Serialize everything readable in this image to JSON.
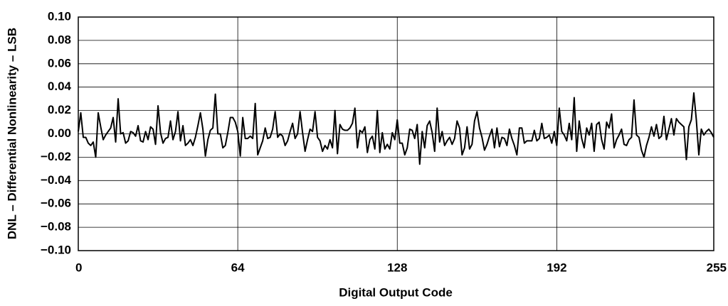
{
  "chart_data": {
    "type": "line",
    "xlabel": "Digital Output Code",
    "ylabel": "DNL – Differential Nonlinearity – LSB",
    "x": [
      0,
      1,
      2,
      3,
      4,
      5,
      6,
      7,
      8,
      9,
      10,
      11,
      12,
      13,
      14,
      15,
      16,
      17,
      18,
      19,
      20,
      21,
      22,
      23,
      24,
      25,
      26,
      27,
      28,
      29,
      30,
      31,
      32,
      33,
      34,
      35,
      36,
      37,
      38,
      39,
      40,
      41,
      42,
      43,
      44,
      45,
      46,
      47,
      48,
      49,
      50,
      51,
      52,
      53,
      54,
      55,
      56,
      57,
      58,
      59,
      60,
      61,
      62,
      63,
      64,
      65,
      66,
      67,
      68,
      69,
      70,
      71,
      72,
      73,
      74,
      75,
      76,
      77,
      78,
      79,
      80,
      81,
      82,
      83,
      84,
      85,
      86,
      87,
      88,
      89,
      90,
      91,
      92,
      93,
      94,
      95,
      96,
      97,
      98,
      99,
      100,
      101,
      102,
      103,
      104,
      105,
      106,
      107,
      108,
      109,
      110,
      111,
      112,
      113,
      114,
      115,
      116,
      117,
      118,
      119,
      120,
      121,
      122,
      123,
      124,
      125,
      126,
      127,
      128,
      129,
      130,
      131,
      132,
      133,
      134,
      135,
      136,
      137,
      138,
      139,
      140,
      141,
      142,
      143,
      144,
      145,
      146,
      147,
      148,
      149,
      150,
      151,
      152,
      153,
      154,
      155,
      156,
      157,
      158,
      159,
      160,
      161,
      162,
      163,
      164,
      165,
      166,
      167,
      168,
      169,
      170,
      171,
      172,
      173,
      174,
      175,
      176,
      177,
      178,
      179,
      180,
      181,
      182,
      183,
      184,
      185,
      186,
      187,
      188,
      189,
      190,
      191,
      192,
      193,
      194,
      195,
      196,
      197,
      198,
      199,
      200,
      201,
      202,
      203,
      204,
      205,
      206,
      207,
      208,
      209,
      210,
      211,
      212,
      213,
      214,
      215,
      216,
      217,
      218,
      219,
      220,
      221,
      222,
      223,
      224,
      225,
      226,
      227,
      228,
      229,
      230,
      231,
      232,
      233,
      234,
      235,
      236,
      237,
      238,
      239,
      240,
      241,
      242,
      243,
      244,
      245,
      246,
      247,
      248,
      249,
      250,
      251,
      252,
      253,
      254,
      255
    ],
    "values": [
      0.002,
      0.018,
      -0.003,
      -0.003,
      -0.008,
      -0.01,
      -0.007,
      -0.02,
      0.018,
      0.006,
      -0.005,
      -0.001,
      0.002,
      0.005,
      0.014,
      -0.007,
      0.03,
      0.0,
      0.001,
      -0.008,
      -0.006,
      0.002,
      0.001,
      -0.002,
      0.007,
      -0.006,
      -0.007,
      0.002,
      -0.005,
      0.006,
      0.004,
      -0.009,
      0.024,
      0.001,
      -0.008,
      -0.004,
      -0.003,
      0.011,
      -0.005,
      0.002,
      0.019,
      -0.006,
      0.007,
      -0.01,
      -0.008,
      -0.005,
      -0.01,
      -0.003,
      0.007,
      0.018,
      0.004,
      -0.019,
      -0.005,
      0.003,
      0.005,
      0.034,
      0.0,
      0.0,
      -0.012,
      -0.01,
      0.001,
      0.014,
      0.014,
      0.01,
      0.002,
      -0.019,
      0.014,
      -0.004,
      -0.004,
      -0.002,
      -0.004,
      0.026,
      -0.018,
      -0.012,
      -0.006,
      0.005,
      -0.004,
      -0.003,
      0.004,
      0.019,
      -0.003,
      0.0,
      -0.002,
      -0.01,
      -0.006,
      0.002,
      0.009,
      -0.004,
      0.0,
      0.019,
      0.001,
      -0.015,
      -0.005,
      0.004,
      0.002,
      0.019,
      -0.003,
      -0.006,
      -0.015,
      -0.01,
      -0.013,
      -0.005,
      -0.012,
      0.02,
      -0.017,
      0.008,
      0.004,
      0.003,
      0.003,
      0.005,
      0.009,
      0.022,
      -0.012,
      0.003,
      0.001,
      0.006,
      -0.016,
      -0.005,
      -0.002,
      -0.013,
      0.02,
      -0.016,
      0.001,
      -0.013,
      -0.009,
      -0.013,
      0.001,
      -0.005,
      0.012,
      -0.008,
      -0.008,
      -0.018,
      -0.012,
      0.004,
      0.003,
      -0.004,
      0.008,
      -0.026,
      0.002,
      -0.012,
      0.007,
      0.011,
      0.001,
      -0.015,
      0.022,
      -0.007,
      0.002,
      -0.01,
      -0.006,
      -0.003,
      -0.009,
      -0.004,
      0.011,
      0.005,
      -0.018,
      -0.012,
      0.006,
      -0.013,
      -0.009,
      0.011,
      0.019,
      0.005,
      -0.003,
      -0.014,
      -0.009,
      -0.002,
      0.004,
      -0.012,
      0.005,
      -0.011,
      -0.003,
      -0.004,
      -0.01,
      0.004,
      -0.004,
      -0.01,
      -0.018,
      0.005,
      0.005,
      -0.008,
      -0.006,
      -0.006,
      -0.006,
      0.003,
      -0.006,
      -0.004,
      0.009,
      -0.004,
      -0.003,
      -0.001,
      -0.008,
      0.002,
      -0.01,
      0.022,
      0.002,
      -0.001,
      -0.006,
      0.009,
      -0.005,
      0.031,
      -0.015,
      0.011,
      -0.004,
      -0.012,
      0.005,
      -0.001,
      0.009,
      -0.015,
      0.008,
      0.01,
      -0.005,
      -0.013,
      0.01,
      0.005,
      0.017,
      -0.012,
      -0.005,
      -0.001,
      0.004,
      -0.009,
      -0.01,
      -0.005,
      -0.003,
      0.029,
      -0.001,
      -0.003,
      -0.014,
      -0.02,
      -0.01,
      -0.003,
      0.006,
      -0.002,
      0.008,
      -0.004,
      -0.002,
      0.015,
      -0.005,
      0.004,
      0.013,
      -0.001,
      0.013,
      0.01,
      0.008,
      0.006,
      -0.022,
      0.006,
      0.012,
      0.035,
      0.012,
      -0.018,
      0.004,
      -0.001,
      0.002,
      0.004,
      0.001,
      -0.003
    ],
    "color": "#000000",
    "xlim": [
      0,
      255
    ],
    "xticks": [
      0,
      64,
      128,
      192,
      255
    ],
    "ylim": [
      -0.1,
      0.1
    ],
    "yticks": [
      {
        "value": 0.1,
        "label": "0.10"
      },
      {
        "value": 0.08,
        "label": "0.08"
      },
      {
        "value": 0.06,
        "label": "0.06"
      },
      {
        "value": 0.04,
        "label": "0.04"
      },
      {
        "value": 0.02,
        "label": "0.02"
      },
      {
        "value": 0,
        "label": "0.00"
      },
      {
        "value": -0.02,
        "label": "−0.02"
      },
      {
        "value": -0.04,
        "label": "−0.04"
      },
      {
        "value": -0.06,
        "label": "−0.06"
      },
      {
        "value": -0.08,
        "label": "−0.08"
      },
      {
        "value": -0.1,
        "label": "−0.10"
      }
    ],
    "grid": true
  }
}
